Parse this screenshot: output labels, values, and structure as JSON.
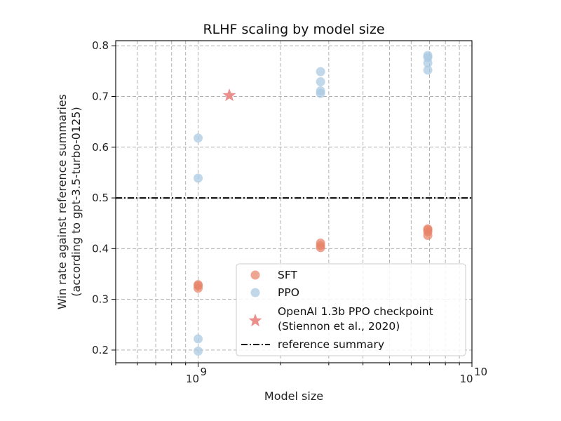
{
  "chart_data": {
    "type": "scatter",
    "title": "RLHF scaling by model size",
    "xlabel": "Model size",
    "ylabel_lines": [
      "Win rate against reference summaries",
      "(according to gpt-3.5-turbo-0125)"
    ],
    "xscale": "log",
    "xlim": [
      500000000,
      10000000000
    ],
    "ylim": [
      0.175,
      0.81
    ],
    "xticks": [
      {
        "value": 1000000000,
        "base": "10",
        "exp": "9"
      },
      {
        "value": 10000000000,
        "base": "10",
        "exp": "10"
      }
    ],
    "yticks": [
      {
        "value": 0.2,
        "label": "0.2"
      },
      {
        "value": 0.3,
        "label": "0.3"
      },
      {
        "value": 0.4,
        "label": "0.4"
      },
      {
        "value": 0.5,
        "label": "0.5"
      },
      {
        "value": 0.6,
        "label": "0.6"
      },
      {
        "value": 0.7,
        "label": "0.7"
      },
      {
        "value": 0.8,
        "label": "0.8"
      }
    ],
    "grid": true,
    "legend_position": "lower-right",
    "series": [
      {
        "name": "SFT",
        "color": "#e8836a",
        "marker": "circle",
        "points": [
          {
            "x": 1000000000,
            "y": 0.322
          },
          {
            "x": 1000000000,
            "y": 0.327
          },
          {
            "x": 1000000000,
            "y": 0.329
          },
          {
            "x": 2800000000,
            "y": 0.402
          },
          {
            "x": 2800000000,
            "y": 0.406
          },
          {
            "x": 2800000000,
            "y": 0.411
          },
          {
            "x": 6900000000,
            "y": 0.426
          },
          {
            "x": 6900000000,
            "y": 0.433
          },
          {
            "x": 6900000000,
            "y": 0.437
          },
          {
            "x": 6900000000,
            "y": 0.439
          }
        ]
      },
      {
        "name": "PPO",
        "color": "#a9c9e2",
        "marker": "circle",
        "points": [
          {
            "x": 1000000000,
            "y": 0.198
          },
          {
            "x": 1000000000,
            "y": 0.222
          },
          {
            "x": 1000000000,
            "y": 0.539
          },
          {
            "x": 1000000000,
            "y": 0.618
          },
          {
            "x": 2800000000,
            "y": 0.706
          },
          {
            "x": 2800000000,
            "y": 0.711
          },
          {
            "x": 2800000000,
            "y": 0.729
          },
          {
            "x": 2800000000,
            "y": 0.749
          },
          {
            "x": 6900000000,
            "y": 0.752
          },
          {
            "x": 6900000000,
            "y": 0.766
          },
          {
            "x": 6900000000,
            "y": 0.777
          },
          {
            "x": 6900000000,
            "y": 0.781
          }
        ]
      },
      {
        "name_lines": [
          "OpenAI 1.3b PPO checkpoint",
          "(Stiennon et al., 2020)"
        ],
        "color": "#e8837f",
        "marker": "star",
        "points": [
          {
            "x": 1300000000,
            "y": 0.702
          }
        ]
      }
    ],
    "reference_line": {
      "name": "reference summary",
      "y": 0.5,
      "style": "dash-dot",
      "color": "#000000"
    }
  }
}
